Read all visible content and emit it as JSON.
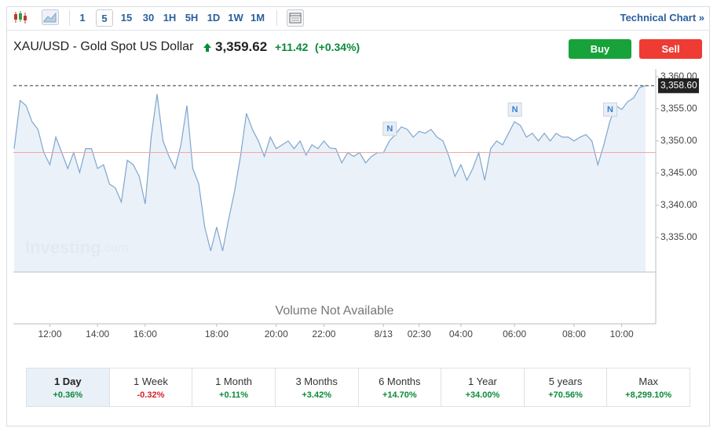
{
  "toolbar": {
    "intervals": [
      "1",
      "5",
      "15",
      "30",
      "1H",
      "5H",
      "1D",
      "1W",
      "1M"
    ],
    "selected": "5",
    "link": "Technical Chart »"
  },
  "header": {
    "title": "XAU/USD - Gold Spot US Dollar",
    "price": "3,359.62",
    "change": "+11.42",
    "change_percent": "(+0.34%)",
    "buttons": [
      "Buy",
      "Sell"
    ]
  },
  "chart_data": {
    "type": "line",
    "values": [
      3348.8,
      3356.3,
      3355.5,
      3353.0,
      3351.8,
      3348.2,
      3346.3,
      3350.6,
      3348.2,
      3345.7,
      3348.2,
      3345.1,
      3348.8,
      3348.8,
      3345.7,
      3346.3,
      3343.3,
      3342.7,
      3340.5,
      3347.0,
      3346.3,
      3344.5,
      3340.2,
      3350.6,
      3357.3,
      3350.0,
      3347.6,
      3345.7,
      3349.4,
      3355.5,
      3345.7,
      3343.3,
      3336.6,
      3332.9,
      3336.6,
      3332.9,
      3337.8,
      3342.1,
      3347.6,
      3354.3,
      3351.8,
      3350.0,
      3347.6,
      3350.6,
      3348.8,
      3349.4,
      3350.0,
      3348.8,
      3350.0,
      3347.8,
      3349.4,
      3348.8,
      3350.0,
      3348.9,
      3348.8,
      3346.6,
      3348.2,
      3347.6,
      3348.2,
      3346.6,
      3347.6,
      3348.2,
      3348.2,
      3350.0,
      3351.0,
      3352.2,
      3351.8,
      3350.6,
      3351.5,
      3351.2,
      3351.8,
      3350.6,
      3350.0,
      3347.6,
      3344.5,
      3346.3,
      3343.9,
      3345.7,
      3348.2,
      3343.9,
      3348.8,
      3350.0,
      3349.4,
      3351.2,
      3353.0,
      3352.4,
      3350.6,
      3351.2,
      3350.0,
      3351.2,
      3350.0,
      3351.2,
      3350.6,
      3350.6,
      3350.0,
      3350.6,
      3351.0,
      3350.0,
      3346.3,
      3349.4,
      3353.0,
      3355.5,
      3354.9,
      3356.1,
      3356.7,
      3358.3,
      3358.6
    ],
    "color": "#7ea6cf",
    "fill": "#e6eef7",
    "xlim": [
      0,
      106
    ],
    "xticks": [
      {
        "value": 6,
        "label": "12:00"
      },
      {
        "value": 14,
        "label": "14:00"
      },
      {
        "value": 22,
        "label": "16:00"
      },
      {
        "value": 34,
        "label": "18:00"
      },
      {
        "value": 44,
        "label": "20:00"
      },
      {
        "value": 52,
        "label": "22:00"
      },
      {
        "value": 62,
        "label": "8/13"
      },
      {
        "value": 68,
        "label": "02:30"
      },
      {
        "value": 75,
        "label": "04:00"
      },
      {
        "value": 84,
        "label": "06:00"
      },
      {
        "value": 94,
        "label": "08:00"
      },
      {
        "value": 102,
        "label": "10:00"
      }
    ],
    "ylim": [
      3329.6,
      3361.2
    ],
    "yticks": [
      {
        "value": 3335,
        "label": "3,335.00"
      },
      {
        "value": 3340,
        "label": "3,340.00"
      },
      {
        "value": 3345,
        "label": "3,345.00"
      },
      {
        "value": 3350,
        "label": "3,350.00"
      },
      {
        "value": 3355,
        "label": "3,355.00"
      },
      {
        "value": 3360,
        "label": "3,360.00"
      }
    ],
    "grid": false,
    "last_price": {
      "value": 3358.6,
      "label": "3,358.60"
    },
    "reference_line": {
      "value": 3348.2,
      "color": "#f0a8a8"
    },
    "annotations": [
      {
        "label": "N",
        "x": 63
      },
      {
        "label": "N",
        "x": 84
      },
      {
        "label": "N",
        "x": 100
      }
    ],
    "volume_text": "Volume Not Available",
    "watermark": [
      "Investing",
      ".com"
    ]
  },
  "periods": [
    {
      "label": "1 Day",
      "change": "+0.36%"
    },
    {
      "label": "1 Week",
      "change": "-0.32%"
    },
    {
      "label": "1 Month",
      "change": "+0.11%"
    },
    {
      "label": "3 Months",
      "change": "+3.42%"
    },
    {
      "label": "6 Months",
      "change": "+14.70%"
    },
    {
      "label": "1 Year",
      "change": "+34.00%"
    },
    {
      "label": "5 years",
      "change": "+70.56%"
    },
    {
      "label": "Max",
      "change": "+8,299.10%"
    }
  ],
  "active_period": "1 Day"
}
